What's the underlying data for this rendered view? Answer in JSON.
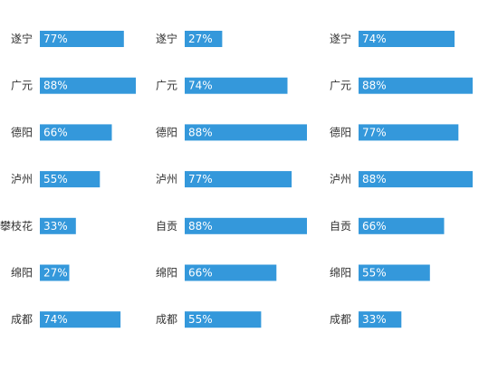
{
  "chart_data": [
    {
      "type": "bar",
      "orientation": "horizontal",
      "categories": [
        "遂宁",
        "广元",
        "德阳",
        "泸州",
        "攀枝花",
        "绵阳",
        "成都"
      ],
      "values": [
        77,
        88,
        66,
        55,
        33,
        27,
        74
      ],
      "value_labels": [
        "77%",
        "88%",
        "66%",
        "55%",
        "33%",
        "27%",
        "74%"
      ],
      "unit": "%",
      "xlim": [
        0,
        88
      ],
      "color": "#3498db",
      "title": "",
      "xlabel": "",
      "ylabel": ""
    },
    {
      "type": "bar",
      "orientation": "horizontal",
      "categories": [
        "遂宁",
        "广元",
        "德阳",
        "泸州",
        "自贡",
        "绵阳",
        "成都"
      ],
      "values": [
        27,
        74,
        88,
        77,
        88,
        66,
        55
      ],
      "value_labels": [
        "27%",
        "74%",
        "88%",
        "77%",
        "88%",
        "66%",
        "55%"
      ],
      "unit": "%",
      "xlim": [
        0,
        88
      ],
      "color": "#3498db",
      "title": "",
      "xlabel": "",
      "ylabel": ""
    },
    {
      "type": "bar",
      "orientation": "horizontal",
      "categories": [
        "遂宁",
        "广元",
        "德阳",
        "泸州",
        "自贡",
        "绵阳",
        "成都"
      ],
      "values": [
        74,
        88,
        77,
        88,
        66,
        55,
        33
      ],
      "value_labels": [
        "74%",
        "88%",
        "77%",
        "88%",
        "66%",
        "55%",
        "33%"
      ],
      "unit": "%",
      "xlim": [
        0,
        88
      ],
      "color": "#3498db",
      "title": "",
      "xlabel": "",
      "ylabel": ""
    }
  ]
}
